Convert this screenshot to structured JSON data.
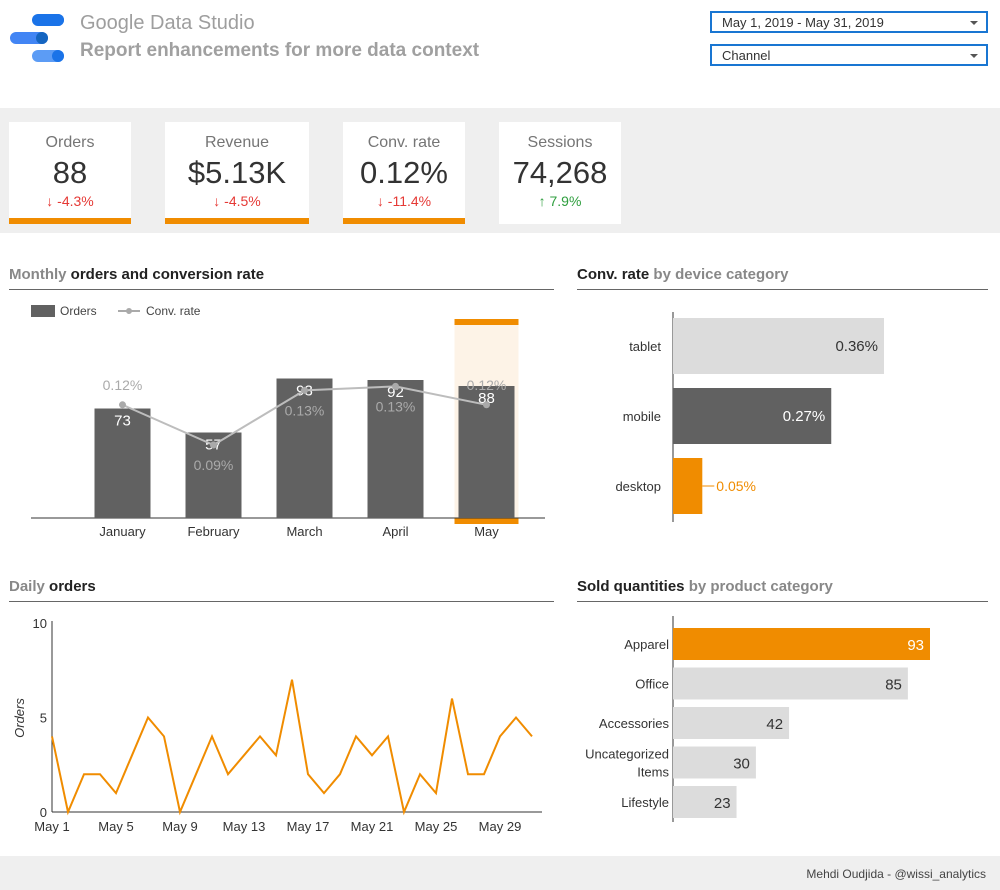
{
  "header": {
    "app_title": "Google Data Studio",
    "report_title": "Report enhancements for more data context",
    "date_range": "May 1, 2019 - May 31, 2019",
    "channel": "Channel"
  },
  "scorecards": [
    {
      "label": "Orders",
      "value": "88",
      "delta": "-4.3%",
      "direction": "down"
    },
    {
      "label": "Revenue",
      "value": "$5.13K",
      "delta": "-4.5%",
      "direction": "down"
    },
    {
      "label": "Conv. rate",
      "value": "0.12%",
      "delta": "-11.4%",
      "direction": "down"
    },
    {
      "label": "Sessions",
      "value": "74,268",
      "delta": "7.9%",
      "direction": "up"
    }
  ],
  "colors": {
    "accent": "#f08c00",
    "bar": "#616161",
    "bar_light": "#dcdcdc",
    "line": "#bdbdbd",
    "down": "#e53935",
    "up": "#2e9e3e"
  },
  "sections": {
    "monthly": {
      "prefix": "Monthly",
      "bold": "orders and conversion rate"
    },
    "device": {
      "bold": "Conv. rate",
      "suffix": "by device category"
    },
    "daily": {
      "prefix": "Daily",
      "bold": "orders"
    },
    "sold": {
      "bold": "Sold quantities",
      "suffix": "by product category"
    }
  },
  "chart_data": [
    {
      "type": "bar",
      "legend": [
        "Orders",
        "Conv. rate"
      ],
      "categories": [
        "January",
        "February",
        "March",
        "April",
        "May"
      ],
      "series": [
        {
          "name": "Orders",
          "values": [
            73,
            57,
            93,
            92,
            88
          ]
        },
        {
          "name": "Conv. rate",
          "values": [
            0.12,
            0.09,
            0.13,
            0.13,
            0.12
          ],
          "labels": [
            "0.12%",
            "0.09%",
            "0.13%",
            "0.13%",
            "0.12%"
          ]
        }
      ],
      "highlight": "May",
      "legend_position": "top-left"
    },
    {
      "type": "bar",
      "orientation": "horizontal",
      "categories": [
        "tablet",
        "mobile",
        "desktop"
      ],
      "values": [
        0.36,
        0.27,
        0.05
      ],
      "labels": [
        "0.36%",
        "0.27%",
        "0.05%"
      ]
    },
    {
      "type": "line",
      "ylabel": "Orders",
      "yticks": [
        0,
        5,
        10
      ],
      "ylim": [
        0,
        10
      ],
      "x": [
        1,
        2,
        3,
        4,
        5,
        6,
        7,
        8,
        9,
        10,
        11,
        12,
        13,
        14,
        15,
        16,
        17,
        18,
        19,
        20,
        21,
        22,
        23,
        24,
        25,
        26,
        27,
        28,
        29,
        30,
        31
      ],
      "xticks": [
        "May 1",
        "May 5",
        "May 9",
        "May 13",
        "May 17",
        "May 21",
        "May 25",
        "May 29"
      ],
      "values": [
        4,
        0,
        2,
        2,
        1,
        3,
        5,
        4,
        0,
        2,
        4,
        2,
        3,
        4,
        3,
        7,
        2,
        1,
        2,
        4,
        3,
        4,
        0,
        2,
        1,
        6,
        2,
        2,
        4,
        5,
        4
      ]
    },
    {
      "type": "bar",
      "orientation": "horizontal",
      "categories": [
        "Apparel",
        "Office",
        "Accessories",
        "Uncategorized Items",
        "Lifestyle"
      ],
      "values": [
        93,
        85,
        42,
        30,
        23
      ],
      "highlight": "Apparel"
    }
  ],
  "footer": "Mehdi Oudjida - @wissi_analytics"
}
